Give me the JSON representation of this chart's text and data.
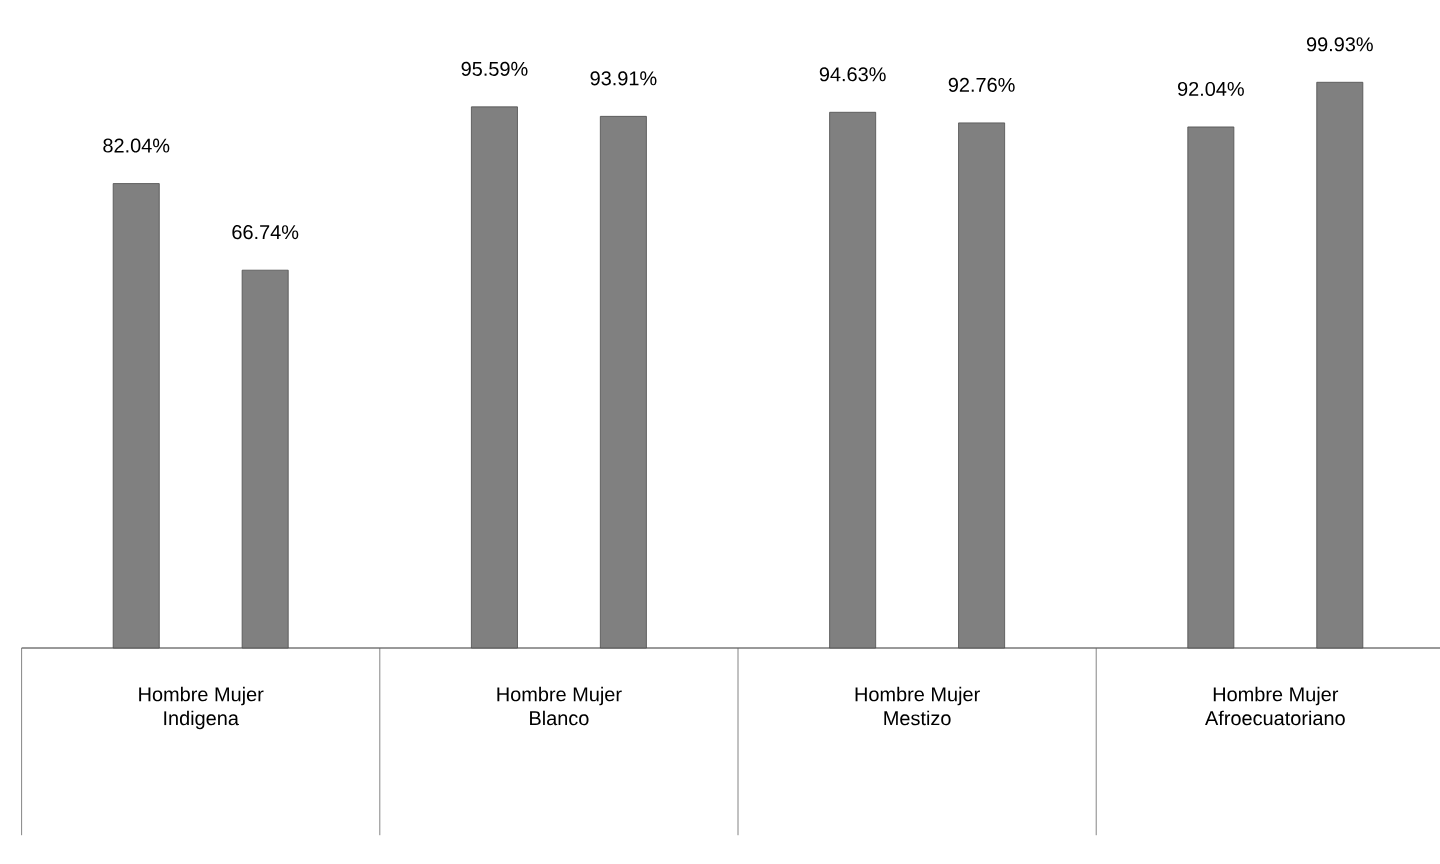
{
  "chart_data": {
    "type": "bar",
    "categories": [
      "Indigena",
      "Blanco",
      "Mestizo",
      "Afroecuatoriano"
    ],
    "series": [
      {
        "name": "Hombre",
        "color": "#808080",
        "values": [
          82.04,
          95.59,
          94.63,
          92.04
        ],
        "value_labels": [
          "82.04%",
          "95.59%",
          "94.63%",
          "92.04%"
        ]
      },
      {
        "name": "Mujer",
        "color": "#808080",
        "values": [
          66.74,
          93.91,
          92.76,
          99.93
        ],
        "value_labels": [
          "66.74%",
          "93.91%",
          "92.76%",
          "99.93%"
        ]
      }
    ]
  }
}
